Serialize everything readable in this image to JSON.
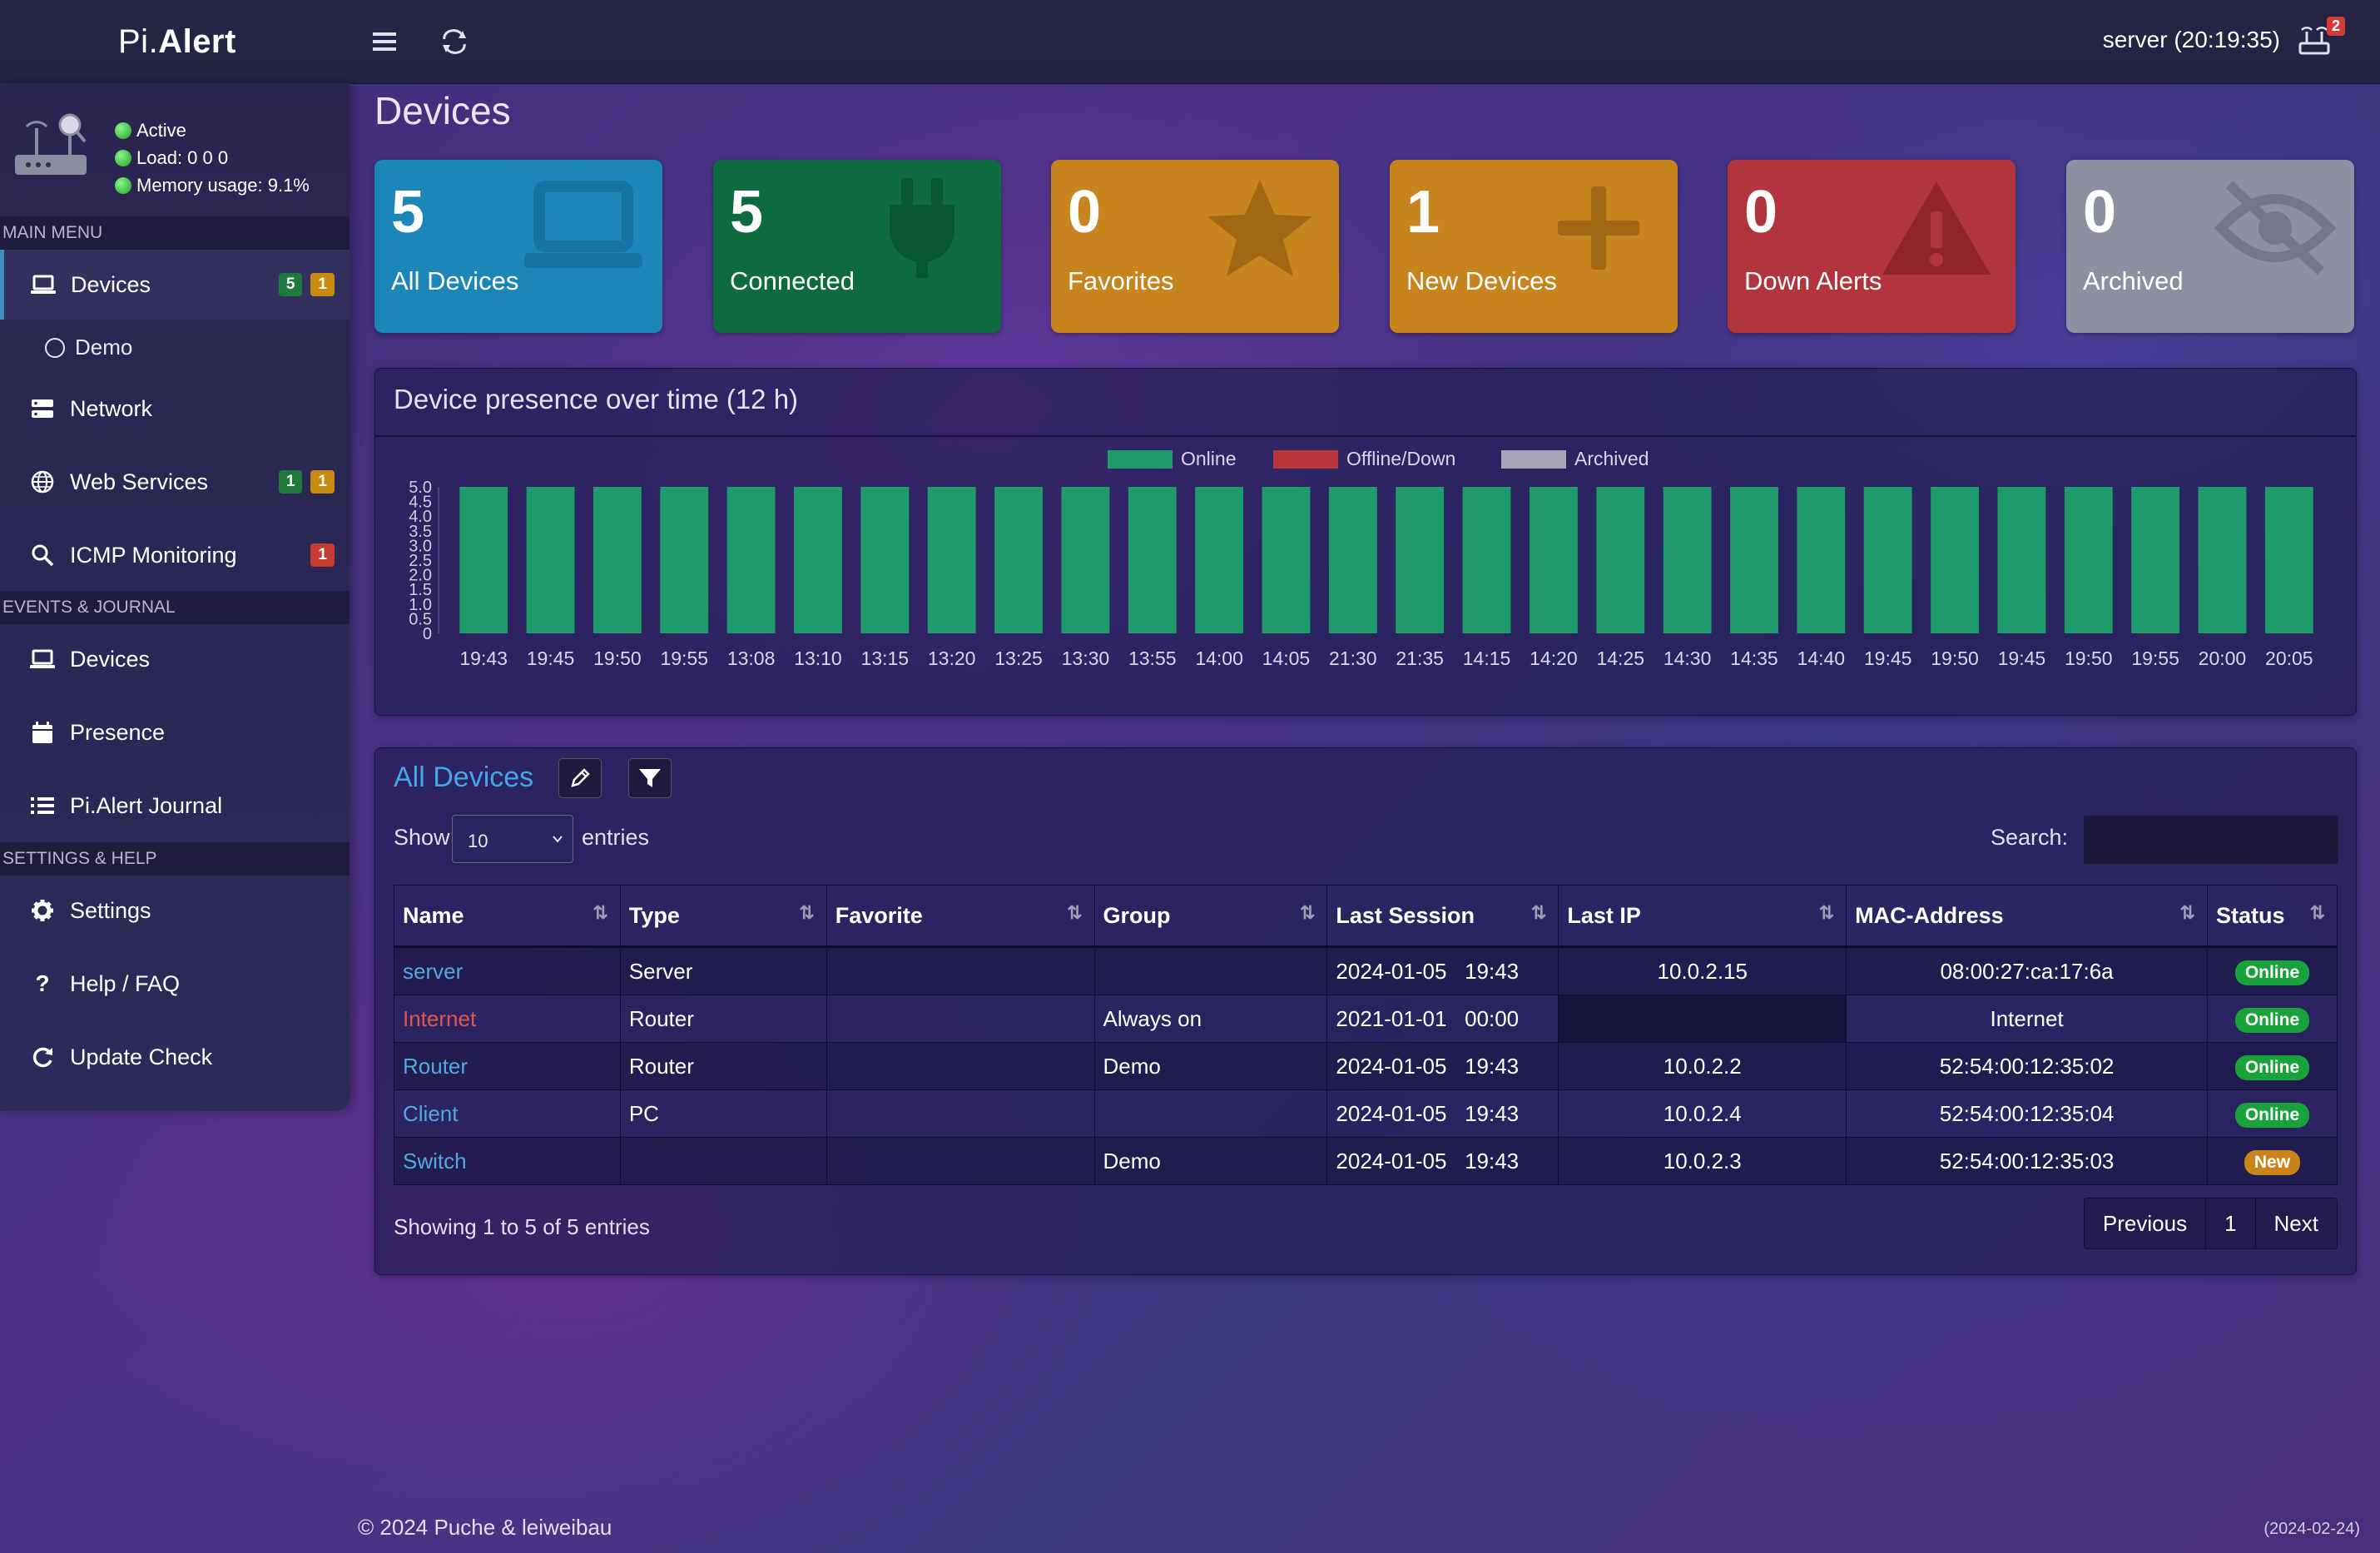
{
  "header": {
    "logo_prefix": "Pi.",
    "logo_suffix": "Alert",
    "server_time": "server (20:19:35)",
    "alert_count": "2"
  },
  "system_status": {
    "active": "Active",
    "load": "Load:  0  0  0",
    "memory": "Memory usage:  9.1%"
  },
  "sidebar": {
    "main_menu": "MAIN MENU",
    "devices": "Devices",
    "devices_badge_green": "5",
    "devices_badge_orange": "1",
    "demo": "Demo",
    "network": "Network",
    "web_services": "Web Services",
    "web_badge_green": "1",
    "web_badge_orange": "1",
    "icmp": "ICMP Monitoring",
    "icmp_badge_red": "1",
    "events_journal": "EVENTS & JOURNAL",
    "ev_devices": "Devices",
    "presence": "Presence",
    "journal": "Pi.Alert Journal",
    "settings_help": "SETTINGS & HELP",
    "settings": "Settings",
    "help": "Help / FAQ",
    "update": "Update Check"
  },
  "page_title": "Devices",
  "tiles": [
    {
      "count": "5",
      "label": "All Devices",
      "color": "#1d86b8",
      "icon": "laptop-icon"
    },
    {
      "count": "5",
      "label": "Connected",
      "color": "#0e6b40",
      "icon": "plug-icon"
    },
    {
      "count": "0",
      "label": "Favorites",
      "color": "#c8851f",
      "icon": "star-icon"
    },
    {
      "count": "1",
      "label": "New Devices",
      "color": "#c8851f",
      "icon": "plus-icon"
    },
    {
      "count": "0",
      "label": "Down Alerts",
      "color": "#b2343c",
      "icon": "warning-icon"
    },
    {
      "count": "0",
      "label": "Archived",
      "color": "#8f8fa2",
      "icon": "eye-slash-icon"
    }
  ],
  "chart_panel": {
    "title": "Device presence over time (12 h)"
  },
  "chart_data": {
    "type": "bar",
    "stacked": true,
    "legend_position": "top",
    "legend": [
      {
        "name": "Online",
        "color": "#1f9a6a"
      },
      {
        "name": "Offline/Down",
        "color": "#b8343a"
      },
      {
        "name": "Archived",
        "color": "#a8a6b6"
      }
    ],
    "categories": [
      "19:43",
      "19:45",
      "19:50",
      "19:55",
      "13:08",
      "13:10",
      "13:15",
      "13:20",
      "13:25",
      "13:30",
      "13:55",
      "14:00",
      "14:05",
      "21:30",
      "21:35",
      "14:15",
      "14:20",
      "14:25",
      "14:30",
      "14:35",
      "14:40",
      "19:45",
      "19:50",
      "19:45",
      "19:50",
      "19:55",
      "20:00",
      "20:05"
    ],
    "series": [
      {
        "name": "Online",
        "values": [
          5,
          5,
          5,
          5,
          5,
          5,
          5,
          5,
          5,
          5,
          5,
          5,
          5,
          5,
          5,
          5,
          5,
          5,
          5,
          5,
          5,
          5,
          5,
          5,
          5,
          5,
          5,
          5
        ]
      },
      {
        "name": "Offline/Down",
        "values": [
          0,
          0,
          0,
          0,
          0,
          0,
          0,
          0,
          0,
          0,
          0,
          0,
          0,
          0,
          0,
          0,
          0,
          0,
          0,
          0,
          0,
          0,
          0,
          0,
          0,
          0,
          0,
          0
        ]
      },
      {
        "name": "Archived",
        "values": [
          0,
          0,
          0,
          0,
          0,
          0,
          0,
          0,
          0,
          0,
          0,
          0,
          0,
          0,
          0,
          0,
          0,
          0,
          0,
          0,
          0,
          0,
          0,
          0,
          0,
          0,
          0,
          0
        ]
      }
    ],
    "y_ticks": [
      "5.0",
      "4.5",
      "4.0",
      "3.5",
      "3.0",
      "2.5",
      "2.0",
      "1.5",
      "1.0",
      "0.5",
      "0"
    ],
    "ylim": [
      0,
      5
    ]
  },
  "table_panel": {
    "title": "All Devices",
    "show": "Show",
    "page_size": "10",
    "entries": "entries",
    "search_label": "Search:",
    "columns": [
      "Name",
      "Type",
      "Favorite",
      "Group",
      "Last Session",
      "Last IP",
      "MAC-Address",
      "Status"
    ],
    "rows": [
      {
        "name": "server",
        "name_color": "blue",
        "type": "Server",
        "favorite": "",
        "group": "",
        "last_session": "2024-01-05   19:43",
        "last_ip": "10.0.2.15",
        "mac": "08:00:27:ca:17:6a",
        "status": "Online"
      },
      {
        "name": "Internet",
        "name_color": "red",
        "type": "Router",
        "favorite": "",
        "group": "Always on",
        "last_session": "2021-01-01   00:00",
        "last_ip": "",
        "mac": "Internet",
        "status": "Online"
      },
      {
        "name": "Router",
        "name_color": "blue",
        "type": "Router",
        "favorite": "",
        "group": "Demo",
        "last_session": "2024-01-05   19:43",
        "last_ip": "10.0.2.2",
        "mac": "52:54:00:12:35:02",
        "status": "Online"
      },
      {
        "name": "Client",
        "name_color": "blue",
        "type": "PC",
        "favorite": "",
        "group": "",
        "last_session": "2024-01-05   19:43",
        "last_ip": "10.0.2.4",
        "mac": "52:54:00:12:35:04",
        "status": "Online"
      },
      {
        "name": "Switch",
        "name_color": "blue",
        "type": "",
        "favorite": "",
        "group": "Demo",
        "last_session": "2024-01-05   19:43",
        "last_ip": "10.0.2.3",
        "mac": "52:54:00:12:35:03",
        "status": "New"
      }
    ],
    "info": "Showing 1 to 5 of 5 entries",
    "prev": "Previous",
    "page": "1",
    "next": "Next"
  },
  "footer": {
    "left": "© 2024 Puche & leiweibau",
    "right": "(2024-02-24)"
  }
}
